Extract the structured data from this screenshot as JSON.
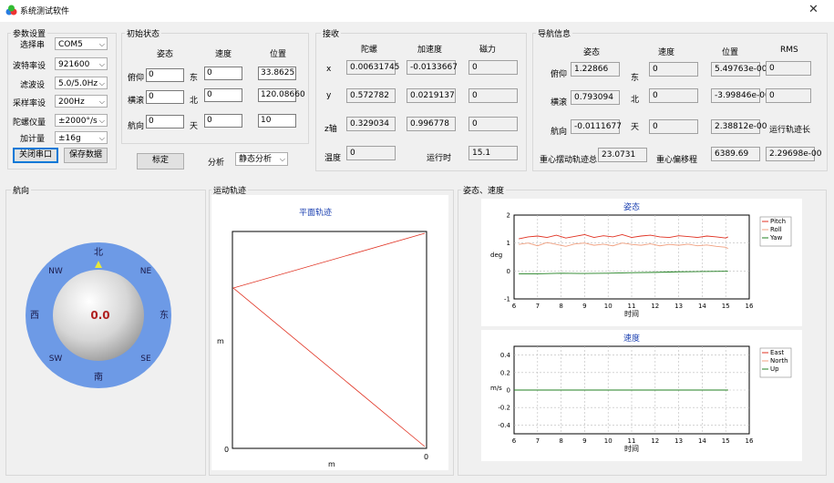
{
  "window": {
    "title": "系统测试软件"
  },
  "params": {
    "group_label": "参数设置",
    "serial_label": "选择串",
    "serial_value": "COM5",
    "baud_label": "波特率设",
    "baud_value": "921600",
    "filter_label": "滤波设",
    "filter_value": "5.0/5.0Hz",
    "sample_label": "采样率设",
    "sample_value": "200Hz",
    "gyro_label": "陀螺仪量",
    "gyro_value": "±2000°/s",
    "accel_label": "加计量",
    "accel_value": "±16g",
    "close_port": "关闭串口",
    "save_data": "保存数据"
  },
  "init": {
    "group_label": "初始状态",
    "col_attitude": "姿态",
    "col_velocity": "速度",
    "col_position": "位置",
    "pitch_label": "俯仰",
    "roll_label": "横滚",
    "heading_label": "航向",
    "east_label": "东",
    "north_label": "北",
    "up_label": "天",
    "pitch_value": "0",
    "roll_value": "0",
    "heading_value": "0",
    "vel_e": "0",
    "vel_n": "0",
    "vel_u": "0",
    "pos_lon": "33.8625",
    "pos_lat": "120.08660",
    "pos_alt": "10",
    "calib_button": "标定",
    "analysis_label": "分析",
    "analysis_value": "静态分析"
  },
  "sensor": {
    "group_label": "接收",
    "col_gyro": "陀螺",
    "col_accel": "加速度",
    "col_mag": "磁力",
    "x_label": "x",
    "y_label": "y",
    "z_label": "z轴",
    "temp_label": "温度",
    "runtime_label": "运行时",
    "gyro_x": "0.00631745",
    "gyro_y": "0.572782",
    "gyro_z": "0.329034",
    "accel_x": "-0.0133667",
    "accel_y": "0.0219137",
    "accel_z": "0.996778",
    "mag_x": "0",
    "mag_y": "0",
    "mag_z": "0",
    "temp_value": "0",
    "runtime_value": "15.1"
  },
  "nav": {
    "group_label": "导航信息",
    "col_attitude": "姿态",
    "col_velocity": "速度",
    "col_position": "位置",
    "col_rms": "RMS",
    "pitch_label": "俯仰",
    "roll_label": "横滚",
    "heading_label": "航向",
    "east_label": "东",
    "north_label": "北",
    "up_label": "天",
    "pitch_value": "1.22866",
    "roll_value": "0.793094",
    "heading_value": "-0.0111677",
    "vel_e": "0",
    "vel_n": "0",
    "vel_u": "0",
    "pos_1": "5.49763e-00",
    "pos_2": "-3.99846e-00",
    "pos_3": "2.38812e-00",
    "rms_1": "0",
    "rms_2": "0",
    "track_label": "运行轨迹长",
    "cg_track_label": "重心摆动轨迹总",
    "cg_track_value": "23.0731",
    "cg_shift_label": "重心偏移程",
    "cg_shift_value": "6389.69",
    "track_value": "2.29698e-00"
  },
  "compass": {
    "group_label": "航向",
    "value": "0.0",
    "n": "北",
    "s": "南",
    "e": "东",
    "w": "西",
    "ne": "NE",
    "nw": "NW",
    "se": "SE",
    "sw": "SW",
    "ring_color": "#6d9ae6",
    "pointer_color": "#e8e83a",
    "value_color": "#b02020"
  },
  "trajectory": {
    "group_label": "运动轨迹",
    "title": "平面轨迹",
    "xlabel": "m",
    "ylabel": "m",
    "x0_label": "0",
    "y0_label": "0",
    "x1_label": "0"
  },
  "attvel": {
    "group_label": "姿态、速度"
  },
  "chart_data": [
    {
      "type": "line",
      "title": "姿态",
      "xlabel": "时间",
      "ylabel": "deg",
      "xlim": [
        6,
        16
      ],
      "ylim": [
        -1,
        2
      ],
      "xticks": [
        6,
        7,
        8,
        9,
        10,
        11,
        12,
        13,
        14,
        15,
        16
      ],
      "yticks": [
        -1,
        0,
        1,
        2
      ],
      "grid": true,
      "legend": "right",
      "series": [
        {
          "name": "Pitch",
          "color": "#e03020",
          "x": [
            6.2,
            6.6,
            7.0,
            7.4,
            7.8,
            8.2,
            8.6,
            9.0,
            9.4,
            9.8,
            10.2,
            10.6,
            11.0,
            11.4,
            11.8,
            12.2,
            12.6,
            13.0,
            13.4,
            13.8,
            14.2,
            14.6,
            15.0,
            15.1
          ],
          "y": [
            1.15,
            1.22,
            1.25,
            1.2,
            1.28,
            1.18,
            1.24,
            1.3,
            1.2,
            1.26,
            1.22,
            1.3,
            1.2,
            1.25,
            1.28,
            1.22,
            1.2,
            1.26,
            1.23,
            1.2,
            1.25,
            1.22,
            1.18,
            1.22
          ]
        },
        {
          "name": "Roll",
          "color": "#f0a080",
          "x": [
            6.2,
            6.6,
            7.0,
            7.4,
            7.8,
            8.2,
            8.6,
            9.0,
            9.4,
            9.8,
            10.2,
            10.6,
            11.0,
            11.4,
            11.8,
            12.2,
            12.6,
            13.0,
            13.4,
            13.8,
            14.2,
            14.6,
            15.0,
            15.1
          ],
          "y": [
            0.95,
            1.0,
            0.9,
            1.02,
            0.95,
            0.88,
            0.97,
            1.0,
            0.92,
            0.96,
            0.9,
            1.0,
            0.95,
            0.92,
            0.97,
            0.9,
            0.95,
            0.92,
            0.96,
            0.9,
            0.93,
            0.88,
            0.85,
            0.8
          ]
        },
        {
          "name": "Yaw",
          "color": "#208020",
          "x": [
            6.2,
            7.0,
            8.0,
            9.0,
            10.0,
            11.0,
            12.0,
            13.0,
            14.0,
            15.0,
            15.1
          ],
          "y": [
            -0.1,
            -0.1,
            -0.08,
            -0.09,
            -0.08,
            -0.06,
            -0.05,
            -0.03,
            -0.02,
            -0.01,
            -0.01
          ]
        }
      ]
    },
    {
      "type": "line",
      "title": "速度",
      "xlabel": "时间",
      "ylabel": "m/s",
      "xlim": [
        6,
        16
      ],
      "ylim": [
        -0.5,
        0.5
      ],
      "xticks": [
        6,
        7,
        8,
        9,
        10,
        11,
        12,
        13,
        14,
        15,
        16
      ],
      "yticks": [
        -0.4,
        -0.2,
        0,
        0.2,
        0.4
      ],
      "grid": true,
      "legend": "right",
      "series": [
        {
          "name": "East",
          "color": "#e03020",
          "x": [
            6.0,
            15.1
          ],
          "y": [
            0,
            0
          ]
        },
        {
          "name": "North",
          "color": "#f0a080",
          "x": [
            6.0,
            15.1
          ],
          "y": [
            0,
            0
          ]
        },
        {
          "name": "Up",
          "color": "#208020",
          "x": [
            6.0,
            15.1
          ],
          "y": [
            0,
            0
          ]
        }
      ]
    }
  ]
}
